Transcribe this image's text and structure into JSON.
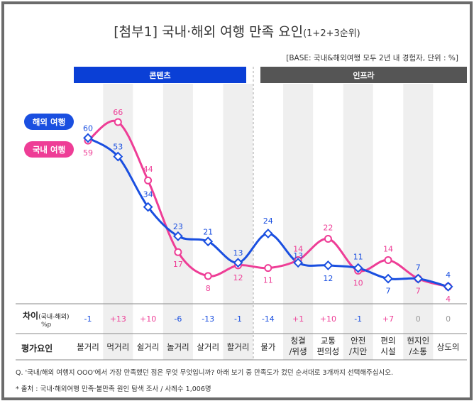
{
  "title": "[첨부1] 국내·해외 여행 만족 요인",
  "title_suffix": "(1+2+3순위)",
  "base_note": "[BASE: 국내&해외여행 모두 2년 내 경험자, 단위 : %]",
  "groups": [
    {
      "label": "콘텐츠",
      "color": "#0a3fd6"
    },
    {
      "label": "인프라",
      "color": "#555555"
    }
  ],
  "chart_data": {
    "type": "line",
    "categories": [
      "볼거리",
      "먹거리",
      "쉴거리",
      "놀거리",
      "살거리",
      "할거리",
      "물가",
      "청결/위생",
      "교통편의성",
      "안전/치안",
      "편의시설",
      "현지인/소통",
      "상도의"
    ],
    "series": [
      {
        "name": "해외 여행",
        "color": "#1a4fe0",
        "marker": "diamond",
        "values": [
          60,
          53,
          34,
          23,
          21,
          13,
          24,
          13,
          12,
          11,
          7,
          7,
          4
        ]
      },
      {
        "name": "국내 여행",
        "color": "#ee3d96",
        "marker": "circle",
        "values": [
          59,
          66,
          44,
          17,
          8,
          12,
          11,
          14,
          22,
          10,
          14,
          7,
          4
        ]
      }
    ],
    "diff_label": "차이",
    "diff_label_sub": "(국내-해외)",
    "diff_unit": "%p",
    "diff": [
      "-1",
      "+13",
      "+10",
      "-6",
      "-13",
      "-1",
      "-14",
      "+1",
      "+10",
      "-1",
      "+7",
      "0",
      "0"
    ],
    "category_header": "평가요인",
    "category_display": [
      [
        "볼거리"
      ],
      [
        "먹거리"
      ],
      [
        "쉴거리"
      ],
      [
        "놀거리"
      ],
      [
        "살거리"
      ],
      [
        "할거리"
      ],
      [
        "물가"
      ],
      [
        "청결",
        "/위생"
      ],
      [
        "교통",
        "편의성"
      ],
      [
        "안전",
        "/치안"
      ],
      [
        "편의",
        "시설"
      ],
      [
        "현지인",
        "/소통"
      ],
      [
        "상도의"
      ]
    ]
  },
  "notes": [
    "Q. '국내/해외 여행지 OOO'에서 가장 만족했던 점은 무엇 무엇입니까? 아래 보기 중 만족도가 컸던 순서대로 3개까지 선택해주십시오.",
    "* 출처 : 국내·해외여행 만족·불만족 원인 탐색 조사 / 사례수 1,006명"
  ]
}
